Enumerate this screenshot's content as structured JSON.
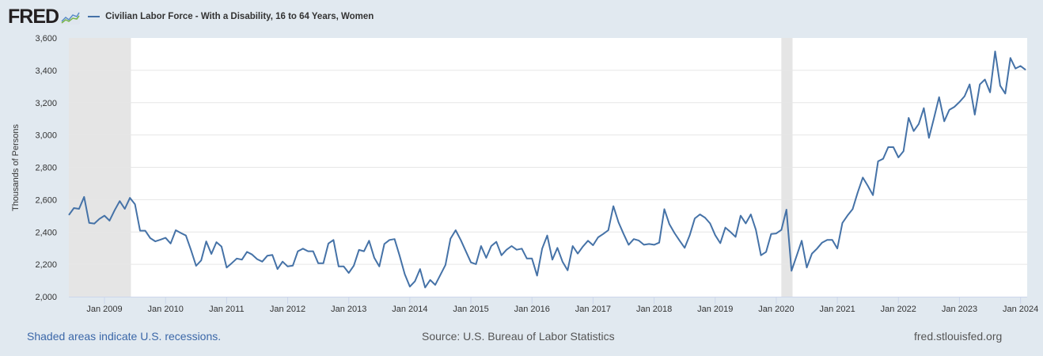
{
  "header": {
    "logo_text": "FRED",
    "logo_icon": "fred-chart-icon",
    "series_title": "Civilian Labor Force - With a Disability, 16 to 64 Years, Women",
    "series_color": "#4572a7"
  },
  "footer": {
    "recession_note": "Shaded areas indicate U.S. recessions.",
    "source": "Source: U.S. Bureau of Labor Statistics",
    "url": "fred.stlouisfed.org"
  },
  "colors": {
    "background": "#e1e9f0",
    "plot_background": "#ffffff",
    "recession_shade": "#e5e5e5",
    "gridline": "#e6e6e6",
    "line": "#4572a7",
    "note_link": "#3b67a8"
  },
  "chart_data": {
    "type": "line",
    "title": "Civilian Labor Force - With a Disability, 16 to 64 Years, Women",
    "xlabel": "",
    "ylabel": "Thousands of Persons",
    "frequency": "monthly",
    "start": "2008-06",
    "end": "2024-02",
    "ylim": [
      2000,
      3600
    ],
    "yticks": [
      2000,
      2200,
      2400,
      2600,
      2800,
      3000,
      3200,
      3400,
      3600
    ],
    "ytick_labels": [
      "2,000",
      "2,200",
      "2,400",
      "2,600",
      "2,800",
      "3,000",
      "3,200",
      "3,400",
      "3,600"
    ],
    "xticks": [
      "2009-01",
      "2010-01",
      "2011-01",
      "2012-01",
      "2013-01",
      "2014-01",
      "2015-01",
      "2016-01",
      "2017-01",
      "2018-01",
      "2019-01",
      "2020-01",
      "2021-01",
      "2022-01",
      "2023-01",
      "2024-01"
    ],
    "xtick_labels": [
      "Jan 2009",
      "Jan 2010",
      "Jan 2011",
      "Jan 2012",
      "Jan 2013",
      "Jan 2014",
      "Jan 2015",
      "Jan 2016",
      "Jan 2017",
      "Jan 2018",
      "Jan 2019",
      "Jan 2020",
      "Jan 2021",
      "Jan 2022",
      "Jan 2023",
      "Jan 2024"
    ],
    "grid": true,
    "legend": "top-left",
    "recessions": [
      {
        "start": "2008-06",
        "end": "2009-06"
      },
      {
        "start": "2020-02",
        "end": "2020-04"
      }
    ],
    "series": [
      {
        "name": "Civilian Labor Force - With a Disability, 16 to 64 Years, Women",
        "values": [
          2505,
          2548,
          2543,
          2617,
          2456,
          2452,
          2481,
          2501,
          2470,
          2535,
          2591,
          2543,
          2611,
          2571,
          2408,
          2408,
          2362,
          2342,
          2353,
          2364,
          2329,
          2411,
          2394,
          2378,
          2289,
          2191,
          2224,
          2342,
          2264,
          2337,
          2310,
          2180,
          2207,
          2236,
          2229,
          2277,
          2261,
          2232,
          2217,
          2253,
          2258,
          2171,
          2217,
          2187,
          2192,
          2281,
          2297,
          2281,
          2281,
          2207,
          2207,
          2329,
          2351,
          2187,
          2187,
          2147,
          2192,
          2289,
          2281,
          2346,
          2241,
          2187,
          2326,
          2351,
          2356,
          2253,
          2139,
          2062,
          2095,
          2171,
          2057,
          2103,
          2073,
          2135,
          2196,
          2359,
          2411,
          2351,
          2282,
          2212,
          2201,
          2313,
          2240,
          2313,
          2339,
          2256,
          2290,
          2313,
          2290,
          2297,
          2236,
          2236,
          2130,
          2297,
          2378,
          2229,
          2302,
          2217,
          2163,
          2313,
          2266,
          2310,
          2346,
          2318,
          2367,
          2388,
          2411,
          2560,
          2460,
          2388,
          2321,
          2356,
          2347,
          2321,
          2326,
          2321,
          2334,
          2541,
          2448,
          2394,
          2347,
          2302,
          2380,
          2484,
          2509,
          2489,
          2453,
          2380,
          2331,
          2427,
          2400,
          2370,
          2501,
          2453,
          2509,
          2413,
          2256,
          2277,
          2388,
          2391,
          2413,
          2538,
          2160,
          2253,
          2346,
          2180,
          2266,
          2297,
          2334,
          2351,
          2351,
          2298,
          2456,
          2502,
          2541,
          2644,
          2737,
          2685,
          2628,
          2837,
          2853,
          2925,
          2925,
          2861,
          2900,
          3106,
          3024,
          3068,
          3166,
          2982,
          3106,
          3234,
          3085,
          3155,
          3174,
          3204,
          3240,
          3313,
          3126,
          3313,
          3343,
          3264,
          3517,
          3305,
          3256,
          3476,
          3411,
          3427,
          3403
        ]
      }
    ]
  }
}
